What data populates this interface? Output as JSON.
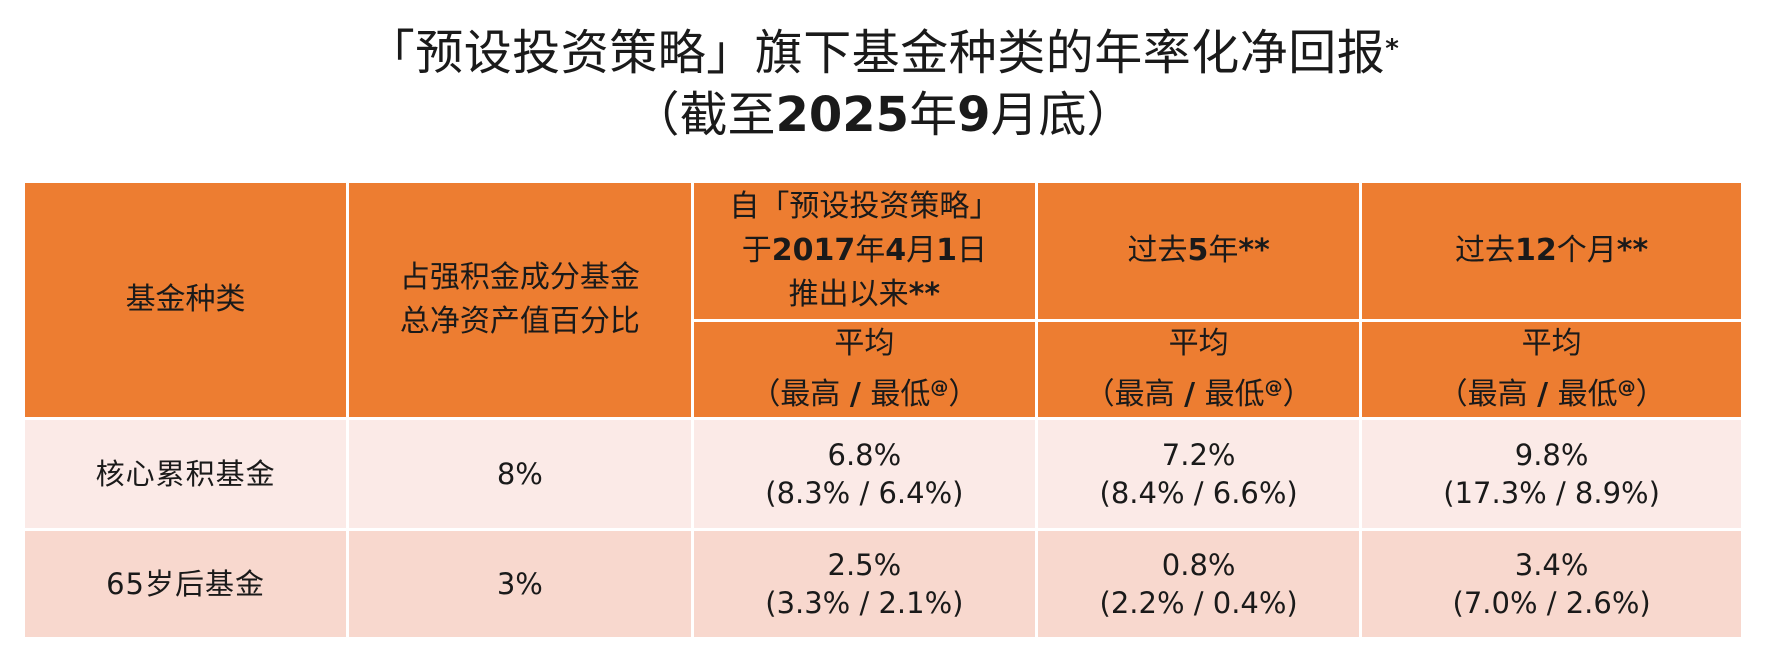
{
  "title": {
    "line1": "「预设投资策略」旗下基金种类的年率化净回报",
    "line1_mark": "*",
    "line2_open": "（截至",
    "line2_year": "2025",
    "line2_mid": "年",
    "line2_month": "9",
    "line2_close": "月底）"
  },
  "table": {
    "headers": {
      "fund_type": "基金种类",
      "share_line1": "占强积金成分基金",
      "share_line2": "总净资产值百分比",
      "since_launch": {
        "line1": "自「预设投资策略」",
        "line2_pre": "于",
        "line2_year": "2017",
        "line2_mid1": "年",
        "line2_month": "4",
        "line2_mid2": "月",
        "line2_day": "1",
        "line2_post": "日",
        "line3": "推出以来",
        "line3_mark": "**"
      },
      "past5": {
        "pre": "过去",
        "num": "5",
        "post": "年",
        "mark": "**"
      },
      "past12": {
        "pre": "过去",
        "num": "12",
        "post": "个月",
        "mark": "**"
      },
      "sub": {
        "line1": "平均",
        "open": "（最高 ",
        "slash": "/",
        "low": " 最低",
        "at": "@",
        "close": "）"
      }
    },
    "rows": [
      {
        "fund": "核心累积基金",
        "share": "8%",
        "since_launch": {
          "avg": "6.8%",
          "range": "(8.3% / 6.4%)"
        },
        "past5": {
          "avg": "7.2%",
          "range": "(8.4% / 6.6%)"
        },
        "past12": {
          "avg": "9.8%",
          "range": "(17.3% / 8.9%)"
        }
      },
      {
        "fund": "65岁后基金",
        "share": "3%",
        "since_launch": {
          "avg": "2.5%",
          "range": "(3.3% / 2.1%)"
        },
        "past5": {
          "avg": "0.8%",
          "range": "(2.2% / 0.4%)"
        },
        "past12": {
          "avg": "3.4%",
          "range": "(7.0% / 2.6%)"
        }
      }
    ]
  },
  "colors": {
    "header": "#ED7D31",
    "row1": "#FBEAE7",
    "row2": "#F8D8CE"
  }
}
